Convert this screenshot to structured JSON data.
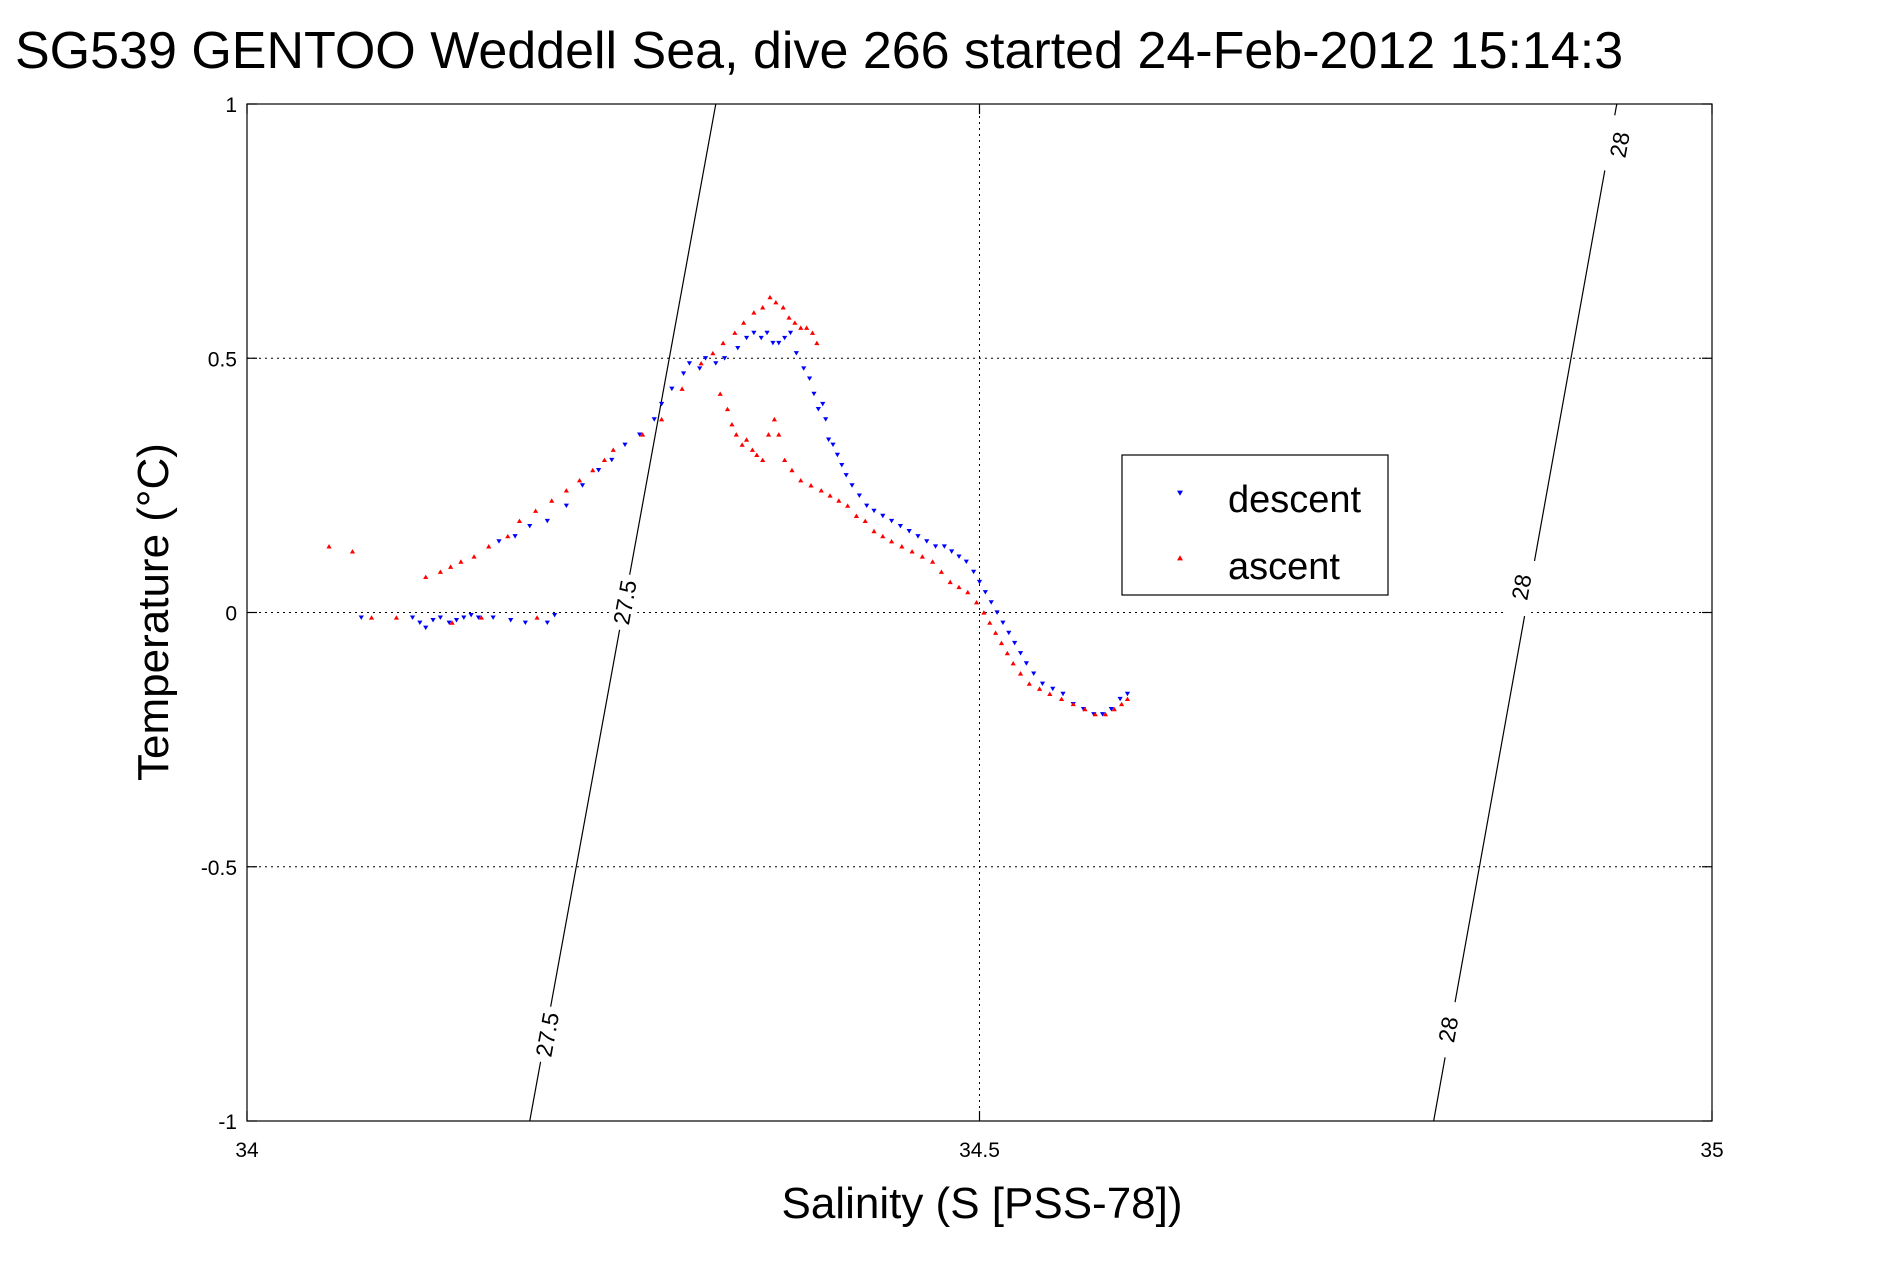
{
  "chart_data": {
    "type": "scatter",
    "title": "SG539 GENTOO Weddell Sea, dive 266 started 24-Feb-2012 15:14:3",
    "xlabel": "Salinity (S [PSS-78])",
    "ylabel": "Temperature (°C)",
    "xlim": [
      34,
      35
    ],
    "ylim": [
      -1,
      1
    ],
    "x_ticks": [
      34,
      34.5,
      35
    ],
    "y_ticks": [
      -1,
      -0.5,
      0,
      0.5,
      1
    ],
    "x_tick_labels": [
      "34",
      "34.5",
      "35"
    ],
    "y_tick_labels": [
      "-1",
      "-0.5",
      "0",
      "0.5",
      "1"
    ],
    "grid": true,
    "legend_position": "center-right",
    "series": [
      {
        "name": "descent",
        "color": "#0000ff",
        "marker": "triangle-down",
        "points": [
          [
            34.078,
            -0.01
          ],
          [
            34.113,
            -0.01
          ],
          [
            34.118,
            -0.02
          ],
          [
            34.122,
            -0.03
          ],
          [
            34.127,
            -0.015
          ],
          [
            34.132,
            -0.01
          ],
          [
            34.138,
            -0.02
          ],
          [
            34.143,
            -0.015
          ],
          [
            34.148,
            -0.01
          ],
          [
            34.153,
            -0.005
          ],
          [
            34.158,
            -0.01
          ],
          [
            34.168,
            -0.01
          ],
          [
            34.18,
            -0.015
          ],
          [
            34.19,
            -0.02
          ],
          [
            34.205,
            -0.02
          ],
          [
            34.21,
            -0.005
          ],
          [
            34.172,
            0.14
          ],
          [
            34.183,
            0.15
          ],
          [
            34.193,
            0.17
          ],
          [
            34.205,
            0.18
          ],
          [
            34.218,
            0.21
          ],
          [
            34.229,
            0.25
          ],
          [
            34.24,
            0.28
          ],
          [
            34.249,
            0.3
          ],
          [
            34.258,
            0.33
          ],
          [
            34.268,
            0.35
          ],
          [
            34.278,
            0.38
          ],
          [
            34.283,
            0.41
          ],
          [
            34.29,
            0.44
          ],
          [
            34.298,
            0.47
          ],
          [
            34.302,
            0.49
          ],
          [
            34.309,
            0.48
          ],
          [
            34.313,
            0.5
          ],
          [
            34.32,
            0.49
          ],
          [
            34.326,
            0.5
          ],
          [
            34.335,
            0.52
          ],
          [
            34.341,
            0.54
          ],
          [
            34.346,
            0.55
          ],
          [
            34.351,
            0.54
          ],
          [
            34.355,
            0.55
          ],
          [
            34.359,
            0.53
          ],
          [
            34.363,
            0.53
          ],
          [
            34.367,
            0.54
          ],
          [
            34.371,
            0.55
          ],
          [
            34.375,
            0.51
          ],
          [
            34.38,
            0.48
          ],
          [
            34.384,
            0.46
          ],
          [
            34.387,
            0.43
          ],
          [
            34.39,
            0.4
          ],
          [
            34.393,
            0.41
          ],
          [
            34.395,
            0.38
          ],
          [
            34.397,
            0.34
          ],
          [
            34.4,
            0.33
          ],
          [
            34.403,
            0.31
          ],
          [
            34.406,
            0.29
          ],
          [
            34.409,
            0.27
          ],
          [
            34.413,
            0.25
          ],
          [
            34.418,
            0.23
          ],
          [
            34.423,
            0.21
          ],
          [
            34.428,
            0.2
          ],
          [
            34.434,
            0.19
          ],
          [
            34.44,
            0.18
          ],
          [
            34.446,
            0.17
          ],
          [
            34.452,
            0.16
          ],
          [
            34.458,
            0.15
          ],
          [
            34.464,
            0.14
          ],
          [
            34.47,
            0.13
          ],
          [
            34.476,
            0.13
          ],
          [
            34.481,
            0.12
          ],
          [
            34.486,
            0.11
          ],
          [
            34.491,
            0.1
          ],
          [
            34.496,
            0.08
          ],
          [
            34.5,
            0.06
          ],
          [
            34.504,
            0.04
          ],
          [
            34.508,
            0.02
          ],
          [
            34.512,
            0.0
          ],
          [
            34.516,
            -0.02
          ],
          [
            34.52,
            -0.04
          ],
          [
            34.524,
            -0.06
          ],
          [
            34.528,
            -0.08
          ],
          [
            34.532,
            -0.1
          ],
          [
            34.537,
            -0.12
          ],
          [
            34.543,
            -0.14
          ],
          [
            34.55,
            -0.15
          ],
          [
            34.557,
            -0.16
          ],
          [
            34.564,
            -0.18
          ],
          [
            34.571,
            -0.19
          ],
          [
            34.578,
            -0.2
          ],
          [
            34.584,
            -0.2
          ],
          [
            34.59,
            -0.19
          ],
          [
            34.596,
            -0.17
          ],
          [
            34.601,
            -0.16
          ]
        ]
      },
      {
        "name": "ascent",
        "color": "#ff0000",
        "marker": "triangle-up",
        "points": [
          [
            34.056,
            0.13
          ],
          [
            34.072,
            0.12
          ],
          [
            34.085,
            -0.01
          ],
          [
            34.102,
            -0.01
          ],
          [
            34.122,
            0.07
          ],
          [
            34.132,
            0.08
          ],
          [
            34.139,
            0.09
          ],
          [
            34.146,
            0.1
          ],
          [
            34.155,
            0.11
          ],
          [
            34.165,
            0.13
          ],
          [
            34.178,
            0.15
          ],
          [
            34.186,
            0.18
          ],
          [
            34.197,
            0.2
          ],
          [
            34.208,
            0.22
          ],
          [
            34.218,
            0.24
          ],
          [
            34.227,
            0.26
          ],
          [
            34.236,
            0.28
          ],
          [
            34.244,
            0.3
          ],
          [
            34.25,
            0.32
          ],
          [
            34.27,
            0.35
          ],
          [
            34.283,
            0.38
          ],
          [
            34.297,
            0.44
          ],
          [
            34.31,
            0.49
          ],
          [
            34.318,
            0.51
          ],
          [
            34.325,
            0.53
          ],
          [
            34.333,
            0.55
          ],
          [
            34.339,
            0.57
          ],
          [
            34.346,
            0.59
          ],
          [
            34.352,
            0.6
          ],
          [
            34.357,
            0.62
          ],
          [
            34.361,
            0.61
          ],
          [
            34.366,
            0.6
          ],
          [
            34.37,
            0.58
          ],
          [
            34.374,
            0.57
          ],
          [
            34.378,
            0.56
          ],
          [
            34.382,
            0.56
          ],
          [
            34.386,
            0.55
          ],
          [
            34.389,
            0.53
          ],
          [
            34.198,
            -0.01
          ],
          [
            34.16,
            -0.01
          ],
          [
            34.14,
            -0.02
          ],
          [
            34.323,
            0.43
          ],
          [
            34.328,
            0.4
          ],
          [
            34.331,
            0.37
          ],
          [
            34.334,
            0.35
          ],
          [
            34.338,
            0.33
          ],
          [
            34.341,
            0.34
          ],
          [
            34.345,
            0.32
          ],
          [
            34.348,
            0.31
          ],
          [
            34.352,
            0.3
          ],
          [
            34.356,
            0.35
          ],
          [
            34.36,
            0.38
          ],
          [
            34.363,
            0.35
          ],
          [
            34.367,
            0.3
          ],
          [
            34.372,
            0.28
          ],
          [
            34.378,
            0.26
          ],
          [
            34.385,
            0.25
          ],
          [
            34.392,
            0.24
          ],
          [
            34.398,
            0.23
          ],
          [
            34.404,
            0.22
          ],
          [
            34.41,
            0.21
          ],
          [
            34.416,
            0.19
          ],
          [
            34.422,
            0.18
          ],
          [
            34.428,
            0.16
          ],
          [
            34.434,
            0.15
          ],
          [
            34.44,
            0.14
          ],
          [
            34.447,
            0.13
          ],
          [
            34.454,
            0.12
          ],
          [
            34.461,
            0.11
          ],
          [
            34.468,
            0.1
          ],
          [
            34.474,
            0.08
          ],
          [
            34.48,
            0.06
          ],
          [
            34.486,
            0.05
          ],
          [
            34.492,
            0.04
          ],
          [
            34.498,
            0.02
          ],
          [
            34.503,
            0.0
          ],
          [
            34.507,
            -0.02
          ],
          [
            34.511,
            -0.04
          ],
          [
            34.515,
            -0.06
          ],
          [
            34.519,
            -0.08
          ],
          [
            34.523,
            -0.1
          ],
          [
            34.528,
            -0.12
          ],
          [
            34.534,
            -0.14
          ],
          [
            34.541,
            -0.15
          ],
          [
            34.548,
            -0.16
          ],
          [
            34.556,
            -0.17
          ],
          [
            34.564,
            -0.18
          ],
          [
            34.572,
            -0.19
          ],
          [
            34.579,
            -0.2
          ],
          [
            34.586,
            -0.2
          ],
          [
            34.592,
            -0.19
          ],
          [
            34.597,
            -0.18
          ],
          [
            34.601,
            -0.17
          ]
        ]
      }
    ],
    "contours": [
      {
        "label": "27.5",
        "points": [
          [
            34.193,
            -1
          ],
          [
            34.32,
            1
          ]
        ],
        "label_positions": [
          [
            34.205,
            -0.83
          ],
          [
            34.258,
            0.02
          ]
        ]
      },
      {
        "label": "28",
        "points": [
          [
            34.81,
            -1
          ],
          [
            34.935,
            1
          ]
        ],
        "label_positions": [
          [
            34.82,
            -0.82
          ],
          [
            34.87,
            0.05
          ],
          [
            34.937,
            0.92
          ]
        ]
      }
    ]
  }
}
